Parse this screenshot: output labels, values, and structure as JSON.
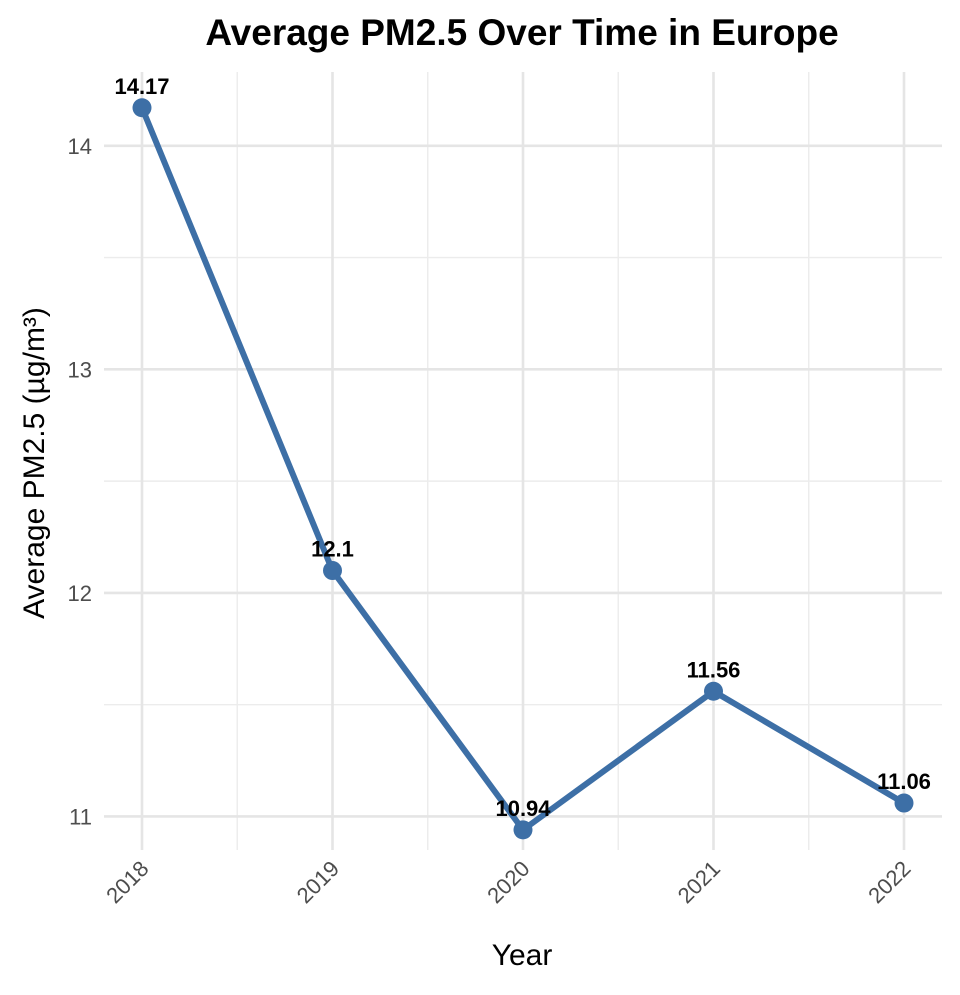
{
  "chart_data": {
    "type": "line",
    "title": "Average PM2.5 Over Time in Europe",
    "xlabel": "Year",
    "ylabel": "Average PM2.5 (µg/m³)",
    "categories": [
      "2018",
      "2019",
      "2020",
      "2021",
      "2022"
    ],
    "values": [
      14.17,
      12.1,
      10.94,
      11.56,
      11.06
    ],
    "data_labels": [
      "14.17",
      "12.1",
      "10.94",
      "11.56",
      "11.06"
    ],
    "ylim": [
      10.85,
      14.33
    ],
    "yticks": [
      11,
      12,
      13,
      14
    ],
    "ytick_labels": [
      "11",
      "12",
      "13",
      "14"
    ],
    "grid": true,
    "legend": "none",
    "line_color": "#3d6fa6"
  }
}
